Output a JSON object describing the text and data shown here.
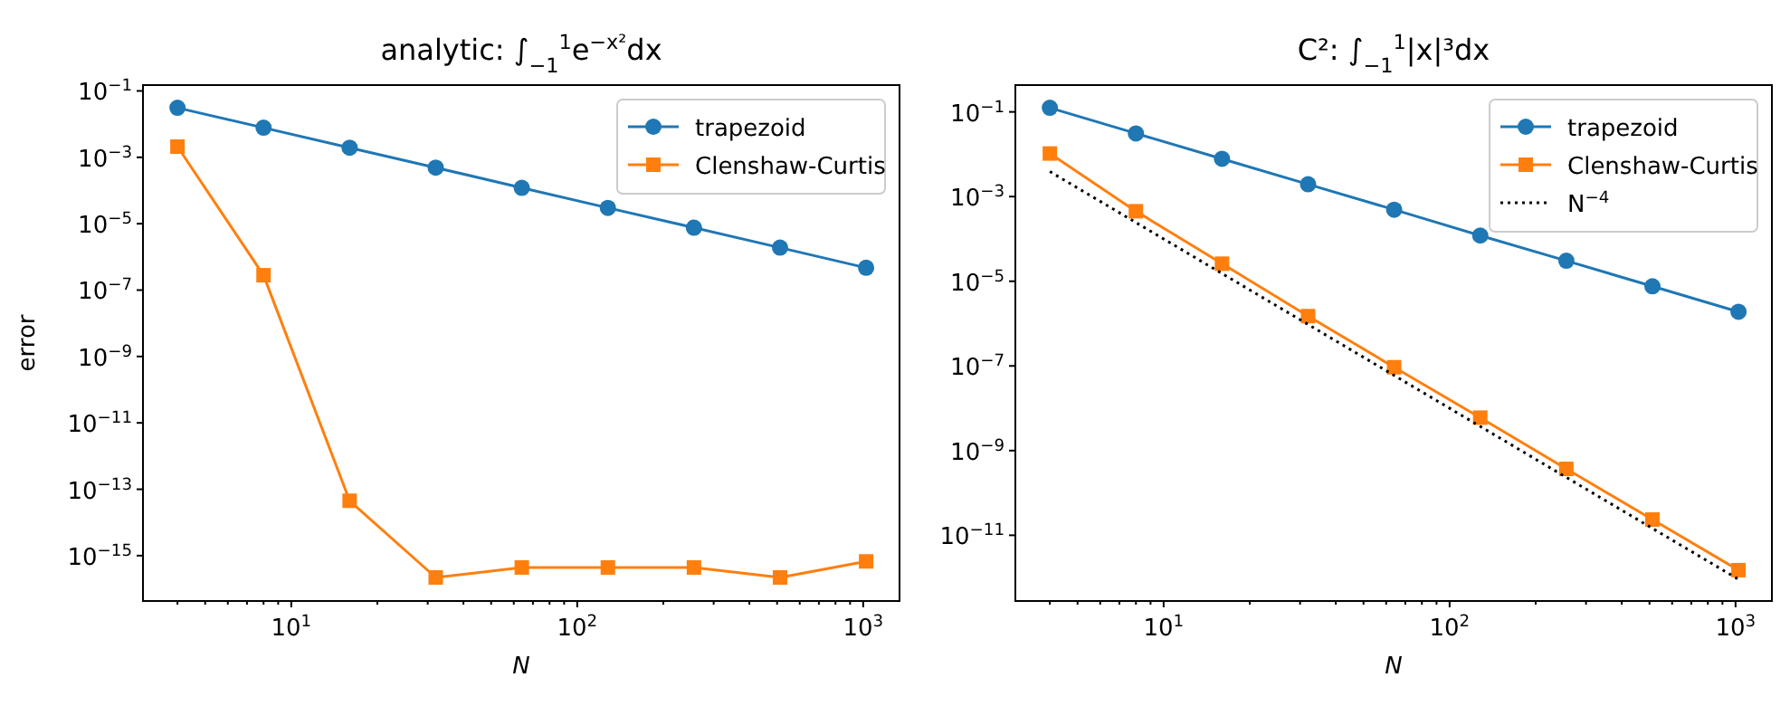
{
  "chart_data": [
    {
      "type": "line",
      "title": "analytic: ∫$_{−1}$$^{1}$e$^{−x²}$dx",
      "xlabel": "N",
      "ylabel": "error",
      "log": "xy",
      "legend": "top right",
      "xlim": [
        3.03,
        1340
      ],
      "ylim": [
        4.3e-17,
        0.15
      ],
      "xticks": [
        {
          "value": 4,
          "label": null
        },
        {
          "value": 5,
          "label": null
        },
        {
          "value": 6,
          "label": null
        },
        {
          "value": 7,
          "label": null
        },
        {
          "value": 8,
          "label": null
        },
        {
          "value": 9,
          "label": null
        },
        {
          "value": 10,
          "label": "10$^{1}$"
        },
        {
          "value": 20,
          "label": null
        },
        {
          "value": 30,
          "label": null
        },
        {
          "value": 40,
          "label": null
        },
        {
          "value": 50,
          "label": null
        },
        {
          "value": 60,
          "label": null
        },
        {
          "value": 70,
          "label": null
        },
        {
          "value": 80,
          "label": null
        },
        {
          "value": 90,
          "label": null
        },
        {
          "value": 100,
          "label": "10$^{2}$"
        },
        {
          "value": 200,
          "label": null
        },
        {
          "value": 300,
          "label": null
        },
        {
          "value": 400,
          "label": null
        },
        {
          "value": 500,
          "label": null
        },
        {
          "value": 600,
          "label": null
        },
        {
          "value": 700,
          "label": null
        },
        {
          "value": 800,
          "label": null
        },
        {
          "value": 900,
          "label": null
        },
        {
          "value": 1000,
          "label": "10$^{3}$"
        }
      ],
      "yticks": [
        {
          "value": 0.1,
          "label": "10$^{−1}$"
        },
        {
          "value": 0.001,
          "label": "10$^{−3}$"
        },
        {
          "value": 1e-05,
          "label": "10$^{−5}$"
        },
        {
          "value": 1e-07,
          "label": "10$^{−7}$"
        },
        {
          "value": 1e-09,
          "label": "10$^{−9}$"
        },
        {
          "value": 1e-11,
          "label": "10$^{−11}$"
        },
        {
          "value": 1e-13,
          "label": "10$^{−13}$"
        },
        {
          "value": 1e-15,
          "label": "10$^{−15}$"
        }
      ],
      "x": [
        4,
        8,
        16,
        32,
        64,
        128,
        256,
        512,
        1024
      ],
      "series": [
        {
          "name": "trapezoid",
          "color": "#1f77b4",
          "marker": "circle",
          "values": [
            0.031,
            0.0078,
            0.00195,
            0.00049,
            0.00012,
            3e-05,
            7.6e-06,
            1.9e-06,
            4.7e-07
          ]
        },
        {
          "name": "Clenshaw-Curtis",
          "color": "#ff7f0e",
          "marker": "square",
          "values": [
            0.0021,
            2.8e-07,
            4.5e-14,
            2.2e-16,
            4.4e-16,
            4.4e-16,
            4.4e-16,
            2.2e-16,
            6.7e-16
          ]
        }
      ]
    },
    {
      "type": "line",
      "title": "C²: ∫$_{−1}$$^{1}$|x|³dx",
      "xlabel": "N",
      "log": "xy",
      "legend": "top right",
      "xlim": [
        3.03,
        1340
      ],
      "ylim": [
        2.8e-13,
        0.43
      ],
      "xticks": [
        {
          "value": 4,
          "label": null
        },
        {
          "value": 5,
          "label": null
        },
        {
          "value": 6,
          "label": null
        },
        {
          "value": 7,
          "label": null
        },
        {
          "value": 8,
          "label": null
        },
        {
          "value": 9,
          "label": null
        },
        {
          "value": 10,
          "label": "10$^{1}$"
        },
        {
          "value": 20,
          "label": null
        },
        {
          "value": 30,
          "label": null
        },
        {
          "value": 40,
          "label": null
        },
        {
          "value": 50,
          "label": null
        },
        {
          "value": 60,
          "label": null
        },
        {
          "value": 70,
          "label": null
        },
        {
          "value": 80,
          "label": null
        },
        {
          "value": 90,
          "label": null
        },
        {
          "value": 100,
          "label": "10$^{2}$"
        },
        {
          "value": 200,
          "label": null
        },
        {
          "value": 300,
          "label": null
        },
        {
          "value": 400,
          "label": null
        },
        {
          "value": 500,
          "label": null
        },
        {
          "value": 600,
          "label": null
        },
        {
          "value": 700,
          "label": null
        },
        {
          "value": 800,
          "label": null
        },
        {
          "value": 900,
          "label": null
        },
        {
          "value": 1000,
          "label": "10$^{3}$"
        }
      ],
      "yticks": [
        {
          "value": 0.1,
          "label": "10$^{−1}$"
        },
        {
          "value": 0.001,
          "label": "10$^{−3}$"
        },
        {
          "value": 1e-05,
          "label": "10$^{−5}$"
        },
        {
          "value": 1e-07,
          "label": "10$^{−7}$"
        },
        {
          "value": 1e-09,
          "label": "10$^{−9}$"
        },
        {
          "value": 1e-11,
          "label": "10$^{−11}$"
        }
      ],
      "x": [
        4,
        8,
        16,
        32,
        64,
        128,
        256,
        512,
        1024
      ],
      "series": [
        {
          "name": "trapezoid",
          "color": "#1f77b4",
          "marker": "circle",
          "values": [
            0.125,
            0.031,
            0.0078,
            0.00195,
            0.00049,
            0.00012,
            3.05e-05,
            7.6e-06,
            1.9e-06
          ]
        },
        {
          "name": "Clenshaw-Curtis",
          "color": "#ff7f0e",
          "marker": "square",
          "values": [
            0.0104,
            0.00045,
            2.6e-05,
            1.5e-06,
            9.3e-08,
            6e-09,
            3.7e-10,
            2.35e-11,
            1.5e-12
          ]
        },
        {
          "name": "N$^{−4}$",
          "color": "#000000",
          "marker": "none",
          "line_style": "dotted",
          "x": [
            4,
            1024
          ],
          "values": [
            0.0039,
            9.1e-13
          ]
        }
      ]
    }
  ]
}
